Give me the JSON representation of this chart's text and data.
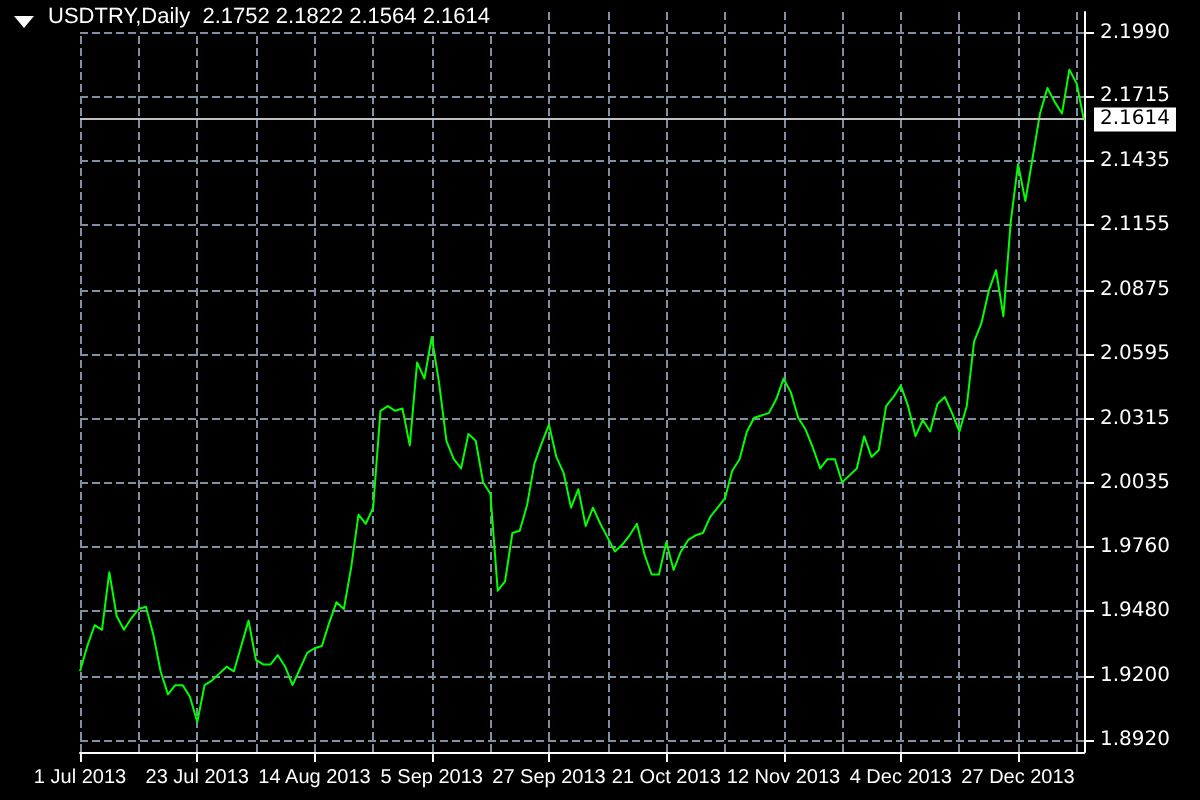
{
  "chart_data": {
    "type": "line",
    "title": "USDTRY,Daily  2.1752 2.1822 2.1564 2.1614",
    "categories": [
      "1 Jul 2013",
      null,
      null,
      null,
      null,
      null,
      null,
      null,
      null,
      null,
      null,
      null,
      null,
      null,
      null,
      null,
      "23 Jul 2013",
      null,
      null,
      null,
      null,
      null,
      null,
      null,
      null,
      null,
      null,
      null,
      null,
      null,
      null,
      null,
      "14 Aug 2013",
      null,
      null,
      null,
      null,
      null,
      null,
      null,
      null,
      null,
      null,
      null,
      null,
      null,
      null,
      null,
      "5 Sep 2013",
      null,
      null,
      null,
      null,
      null,
      null,
      null,
      null,
      null,
      null,
      null,
      null,
      null,
      null,
      null,
      "27 Sep 2013",
      null,
      null,
      null,
      null,
      null,
      null,
      null,
      null,
      null,
      null,
      null,
      null,
      null,
      null,
      null,
      "21 Oct 2013",
      null,
      null,
      null,
      null,
      null,
      null,
      null,
      null,
      null,
      null,
      null,
      null,
      null,
      null,
      null,
      "12 Nov 2013",
      null,
      null,
      null,
      null,
      null,
      null,
      null,
      null,
      null,
      null,
      null,
      null,
      null,
      null,
      null,
      "4 Dec 2013",
      null,
      null,
      null,
      null,
      null,
      null,
      null,
      null,
      null,
      null,
      null,
      null,
      null,
      null,
      null,
      "27 Dec 2013",
      null,
      null,
      null,
      null,
      null,
      null,
      null,
      null,
      null
    ],
    "series": [
      {
        "color": "#00ff00",
        "values": [
          1.922,
          1.933,
          1.942,
          1.94,
          1.965,
          1.946,
          1.94,
          1.945,
          1.949,
          1.95,
          1.938,
          1.922,
          1.912,
          1.916,
          1.916,
          1.911,
          1.9,
          1.916,
          1.918,
          1.921,
          1.924,
          1.922,
          1.933,
          1.944,
          1.927,
          1.925,
          1.925,
          1.929,
          1.924,
          1.916,
          1.923,
          1.93,
          1.932,
          1.933,
          1.943,
          1.952,
          1.949,
          1.967,
          1.99,
          1.986,
          1.993,
          2.035,
          2.037,
          2.035,
          2.036,
          2.02,
          2.056,
          2.049,
          2.067,
          2.047,
          2.022,
          2.014,
          2.01,
          2.025,
          2.022,
          2.004,
          1.999,
          1.957,
          1.961,
          1.982,
          1.983,
          1.994,
          2.012,
          2.021,
          2.029,
          2.015,
          2.008,
          1.993,
          2.001,
          1.985,
          1.993,
          1.986,
          1.98,
          1.974,
          1.977,
          1.981,
          1.986,
          1.973,
          1.964,
          1.964,
          1.978,
          1.966,
          1.974,
          1.979,
          1.981,
          1.982,
          1.989,
          1.993,
          1.997,
          2.009,
          2.014,
          2.026,
          2.032,
          2.033,
          2.034,
          2.04,
          2.049,
          2.043,
          2.032,
          2.027,
          2.019,
          2.01,
          2.014,
          2.014,
          2.004,
          2.007,
          2.01,
          2.024,
          2.015,
          2.018,
          2.037,
          2.041,
          2.046,
          2.037,
          2.024,
          2.031,
          2.026,
          2.038,
          2.041,
          2.034,
          2.026,
          2.037,
          2.065,
          2.073,
          2.087,
          2.096,
          2.076,
          2.117,
          2.142,
          2.126,
          2.145,
          2.164,
          2.175,
          2.169,
          2.164,
          2.183,
          2.177,
          2.161
        ]
      }
    ],
    "ylim": [
      1.887,
      2.208
    ],
    "yticks": [
      {
        "value": 1.892,
        "label": "1.8920"
      },
      {
        "value": 1.92,
        "label": "1.9200"
      },
      {
        "value": 1.948,
        "label": "1.9480"
      },
      {
        "value": 1.976,
        "label": "1.9760"
      },
      {
        "value": 2.0035,
        "label": "2.0035"
      },
      {
        "value": 2.0315,
        "label": "2.0315"
      },
      {
        "value": 2.0595,
        "label": "2.0595"
      },
      {
        "value": 2.0875,
        "label": "2.0875"
      },
      {
        "value": 2.1155,
        "label": "2.1155"
      },
      {
        "value": 2.1435,
        "label": "2.1435"
      },
      {
        "value": 2.1715,
        "label": "2.1715"
      },
      {
        "value": 2.199,
        "label": "2.1990"
      }
    ],
    "ref_lines": [
      {
        "axis": "y",
        "value": 2.1614,
        "label": "2.1614",
        "color": "#c0c0c0"
      }
    ],
    "grid": true
  }
}
